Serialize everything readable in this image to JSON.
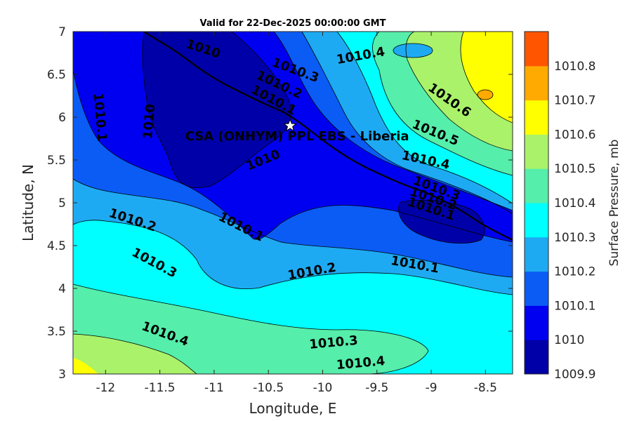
{
  "title": "Valid for 22-Dec-2025 00:00:00 GMT",
  "x_axis": {
    "label": "Longitude, E",
    "ticks": [
      "-12",
      "-11.5",
      "-11",
      "-10.5",
      "-10",
      "-9.5",
      "-9",
      "-8.5"
    ],
    "tick_values": [
      -12,
      -11.5,
      -11,
      -10.5,
      -10,
      -9.5,
      -9,
      -8.5
    ],
    "range": [
      -12.3,
      -8.25
    ]
  },
  "y_axis": {
    "label": "Latitude, N",
    "ticks": [
      "3",
      "3.5",
      "4",
      "4.5",
      "5",
      "5.5",
      "6",
      "6.5",
      "7"
    ],
    "tick_values": [
      3,
      3.5,
      4,
      4.5,
      5,
      5.5,
      6,
      6.5,
      7
    ],
    "range": [
      3,
      7
    ]
  },
  "colorbar": {
    "label": "Surface Pressure, mb",
    "levels": [
      "1009.9",
      "1010",
      "1010.1",
      "1010.2",
      "1010.3",
      "1010.4",
      "1010.5",
      "1010.6",
      "1010.7",
      "1010.8"
    ],
    "colors": [
      "#0000a8",
      "#0000f0",
      "#0a5cf5",
      "#1eaaf2",
      "#00ffff",
      "#55eeaa",
      "#a9f26a",
      "#ffff00",
      "#ffaa00",
      "#ff5500"
    ]
  },
  "site": {
    "label": "CSA (ONHYM) PPL EBS  - Liberia",
    "marker": "star-icon",
    "lon": -10.3,
    "lat": 5.9
  },
  "contour_labels": [
    {
      "text": "1010",
      "lon": -11.1,
      "lat": 6.8,
      "angle": 18
    },
    {
      "text": "1010.4",
      "lon": -9.65,
      "lat": 6.72,
      "angle": -10
    },
    {
      "text": "1010.3",
      "lon": -10.25,
      "lat": 6.55,
      "angle": 20
    },
    {
      "text": "1010.2",
      "lon": -10.4,
      "lat": 6.38,
      "angle": 25
    },
    {
      "text": "1010.1",
      "lon": -10.45,
      "lat": 6.2,
      "angle": 28
    },
    {
      "text": "1010.1",
      "lon": -12.05,
      "lat": 6.0,
      "angle": 85
    },
    {
      "text": "1010",
      "lon": -11.6,
      "lat": 5.95,
      "angle": -85
    },
    {
      "text": "1010.6",
      "lon": -8.83,
      "lat": 6.2,
      "angle": 35
    },
    {
      "text": "1010.5",
      "lon": -8.96,
      "lat": 5.82,
      "angle": 22
    },
    {
      "text": "1010.4",
      "lon": -9.05,
      "lat": 5.5,
      "angle": 12
    },
    {
      "text": "1010",
      "lon": -10.55,
      "lat": 5.5,
      "angle": -22
    },
    {
      "text": "1010.3",
      "lon": -8.95,
      "lat": 5.17,
      "angle": 20
    },
    {
      "text": "1010.2",
      "lon": -8.98,
      "lat": 5.05,
      "angle": 18
    },
    {
      "text": "1010.1",
      "lon": -9.0,
      "lat": 4.93,
      "angle": 18
    },
    {
      "text": "1010.2",
      "lon": -11.75,
      "lat": 4.8,
      "angle": 18
    },
    {
      "text": "1010.1",
      "lon": -10.75,
      "lat": 4.72,
      "angle": 27
    },
    {
      "text": "1010.3",
      "lon": -11.55,
      "lat": 4.3,
      "angle": 28
    },
    {
      "text": "1010.2",
      "lon": -10.1,
      "lat": 4.2,
      "angle": -10
    },
    {
      "text": "1010.1",
      "lon": -9.15,
      "lat": 4.28,
      "angle": 10
    },
    {
      "text": "1010.4",
      "lon": -11.45,
      "lat": 3.47,
      "angle": 20
    },
    {
      "text": "1010.3",
      "lon": -9.9,
      "lat": 3.37,
      "angle": -5
    },
    {
      "text": "1010.4",
      "lon": -9.65,
      "lat": 3.13,
      "angle": -5
    }
  ]
}
